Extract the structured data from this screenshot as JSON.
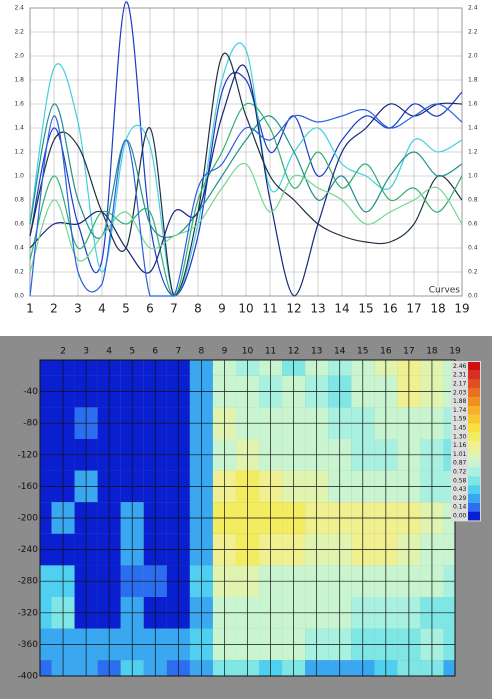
{
  "chart_data": [
    {
      "type": "line",
      "annotation": "Curves",
      "x": [
        1,
        2,
        3,
        4,
        5,
        6,
        7,
        8,
        9,
        10,
        11,
        12,
        13,
        14,
        15,
        16,
        17,
        18,
        19
      ],
      "xlim": [
        1,
        19
      ],
      "xticks": [
        1,
        2,
        3,
        4,
        5,
        6,
        7,
        8,
        9,
        10,
        11,
        12,
        13,
        14,
        15,
        16,
        17,
        18,
        19
      ],
      "ylim": [
        0,
        2.4
      ],
      "yticks": [
        {
          "value": 0,
          "label": "0.0"
        },
        0.2,
        0.4,
        0.6,
        0.8,
        {
          "value": 1,
          "label": "1.0"
        },
        1.2,
        1.4,
        1.6,
        1.8,
        {
          "value": 2,
          "label": "2.0"
        },
        2.2,
        2.4
      ],
      "right_axis": true,
      "grid": true,
      "series": [
        {
          "color": "#1a3cc8",
          "values": [
            0.5,
            1.4,
            0.6,
            0.3,
            2.45,
            0.6,
            0,
            0.5,
            1.7,
            1.8,
            1.2,
            1.5,
            1.0,
            1.3,
            1.5,
            1.4,
            1.6,
            1.5,
            1.7
          ]
        },
        {
          "color": "#40d0e0",
          "values": [
            0.6,
            1.9,
            1.45,
            0.2,
            1.3,
            1.25,
            0,
            0.6,
            1.8,
            2.05,
            0.9,
            1.2,
            1.4,
            1.1,
            1.0,
            0.9,
            1.3,
            1.2,
            1.3
          ]
        },
        {
          "color": "#203040",
          "values": [
            0.5,
            1.3,
            1.25,
            0.7,
            0.4,
            1.4,
            0,
            0.7,
            2.0,
            1.5,
            1.0,
            0.8,
            0.6,
            0.5,
            0.45,
            0.45,
            0.6,
            1.0,
            0.8
          ]
        },
        {
          "color": "#30b070",
          "values": [
            0.3,
            1.0,
            0.4,
            0.7,
            0.6,
            0.7,
            0,
            0.8,
            1.2,
            1.6,
            1.4,
            0.9,
            1.2,
            0.9,
            1.1,
            0.8,
            0.9,
            0.7,
            1.0
          ]
        },
        {
          "color": "#20908c",
          "values": [
            0.6,
            1.6,
            0.8,
            0.5,
            1.3,
            0.6,
            0.5,
            0.7,
            1.0,
            1.3,
            1.5,
            1.2,
            0.8,
            1.0,
            0.7,
            1.0,
            1.2,
            1.0,
            1.1
          ]
        },
        {
          "color": "#182878",
          "values": [
            0.4,
            0.6,
            0.6,
            0.7,
            0.4,
            0.2,
            0.7,
            0.7,
            1.5,
            1.9,
            0.8,
            0.0,
            0.6,
            1.2,
            1.4,
            1.6,
            1.5,
            1.6,
            1.6
          ]
        },
        {
          "color": "#70d890",
          "values": [
            0.2,
            0.8,
            0.3,
            0.5,
            0.7,
            0.4,
            0.5,
            0.6,
            0.9,
            1.1,
            0.7,
            1.0,
            0.9,
            0.8,
            0.6,
            0.7,
            0.8,
            0.9,
            0.6
          ]
        },
        {
          "color": "#2a60e0",
          "values": [
            0.0,
            1.5,
            0.2,
            0.1,
            1.3,
            0.0,
            0.0,
            0.9,
            1.1,
            1.4,
            1.3,
            1.5,
            1.45,
            1.5,
            1.55,
            1.4,
            1.5,
            1.6,
            1.45
          ]
        }
      ]
    },
    {
      "type": "heatmap",
      "x": [
        1,
        2,
        3,
        4,
        5,
        6,
        7,
        8,
        9,
        10,
        11,
        12,
        13,
        14,
        15,
        16,
        17,
        18,
        19
      ],
      "xlim": [
        1,
        19
      ],
      "xticks": [
        2,
        3,
        4,
        5,
        6,
        7,
        8,
        9,
        10,
        11,
        12,
        13,
        14,
        15,
        16,
        17,
        18,
        19
      ],
      "y": [
        0,
        -40,
        -80,
        -120,
        -160,
        -200,
        -240,
        -280,
        -320,
        -360,
        -400
      ],
      "ylim": [
        -400,
        0
      ],
      "yticks": [
        -40,
        -80,
        -120,
        -160,
        -200,
        -240,
        -280,
        -320,
        -360,
        -400
      ],
      "values": [
        [
          0,
          0,
          0,
          0,
          0,
          0,
          0,
          0.3,
          0.9,
          0.8,
          0.9,
          0.7,
          0.9,
          0.8,
          1.0,
          1.1,
          1.2,
          1.1,
          1.0
        ],
        [
          0,
          0,
          0,
          0,
          0,
          0,
          0,
          0.3,
          1.0,
          0.9,
          0.8,
          0.9,
          0.8,
          0.7,
          0.9,
          1.0,
          1.2,
          1.1,
          0.9
        ],
        [
          0,
          0,
          0.2,
          0,
          0,
          0,
          0,
          0.3,
          1.1,
          1.0,
          0.9,
          1.0,
          0.9,
          0.8,
          0.8,
          0.9,
          1.0,
          0.9,
          0.8
        ],
        [
          0,
          0,
          0,
          0,
          0,
          0,
          0,
          0.3,
          1.0,
          1.1,
          1.0,
          1.0,
          0.9,
          0.9,
          0.8,
          0.8,
          0.9,
          0.8,
          0.7
        ],
        [
          0,
          0,
          0.4,
          0,
          0,
          0,
          0,
          0.4,
          1.2,
          1.3,
          1.2,
          1.1,
          1.1,
          1.0,
          0.9,
          0.9,
          0.9,
          0.8,
          0.8
        ],
        [
          0,
          0.3,
          0,
          0,
          0.3,
          0,
          0,
          0.4,
          1.3,
          1.4,
          1.3,
          1.3,
          1.2,
          1.2,
          1.2,
          1.2,
          1.2,
          1.1,
          1.0
        ],
        [
          0,
          0,
          0,
          0,
          0.4,
          0,
          0,
          0.4,
          1.2,
          1.3,
          1.2,
          1.2,
          1.1,
          1.1,
          1.2,
          1.2,
          1.1,
          1.0,
          0.9
        ],
        [
          0.5,
          0.5,
          0,
          0,
          0.2,
          0.2,
          0,
          0.5,
          1.1,
          1.1,
          1.0,
          1.0,
          1.0,
          1.0,
          1.0,
          1.0,
          0.9,
          0.9,
          0.8
        ],
        [
          0.5,
          0.6,
          0,
          0,
          0.3,
          0,
          0,
          0.4,
          1.0,
          1.0,
          1.0,
          0.9,
          0.9,
          0.9,
          0.8,
          0.8,
          0.8,
          0.7,
          0.7
        ],
        [
          0.3,
          0.4,
          0.3,
          0.3,
          0.4,
          0.3,
          0.3,
          0.5,
          0.9,
          0.9,
          0.9,
          1.0,
          0.8,
          0.8,
          0.7,
          0.7,
          0.7,
          0.8,
          0.6
        ],
        [
          0.2,
          0.3,
          0.3,
          0.2,
          0.5,
          0.3,
          0.2,
          0.4,
          0.6,
          0.6,
          0.5,
          0.7,
          0.4,
          0.3,
          0.3,
          0.5,
          0.6,
          0.6,
          0.4
        ]
      ],
      "colorbar": {
        "ticks": [
          2.46,
          2.31,
          2.17,
          2.03,
          1.88,
          1.74,
          1.59,
          1.45,
          {
            "value": 1.3,
            "label": "1.30"
          },
          1.16,
          1.01,
          0.87,
          0.72,
          0.58,
          0.43,
          0.29,
          0.14,
          {
            "value": 0,
            "label": "0.00"
          }
        ],
        "colors": [
          "#d01010",
          "#d83020",
          "#e05020",
          "#e87020",
          "#f09020",
          "#f8b028",
          "#f8c830",
          "#f8e040",
          "#f4ec60",
          "#f0f090",
          "#e0f4b0",
          "#c8f4d0",
          "#a8f0e0",
          "#7fe6e6",
          "#4fd0f0",
          "#3aa8f0",
          "#2c6ef0",
          "#0a1fd0"
        ]
      }
    }
  ]
}
